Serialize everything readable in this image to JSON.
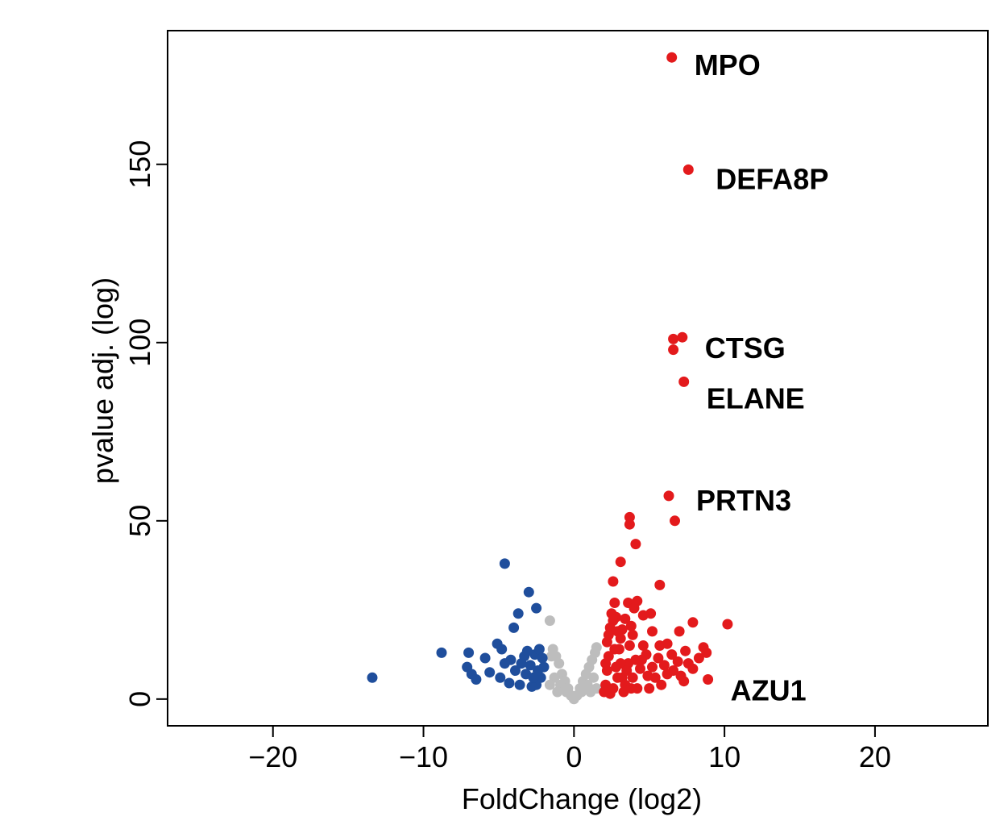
{
  "chart_data": {
    "type": "scatter",
    "title": "",
    "xlabel": "FoldChange (log2)",
    "ylabel": "pvalue adj. (log)",
    "xlim": [
      -27,
      27.5
    ],
    "ylim": [
      -7.5,
      187.5
    ],
    "xticks": [
      -20,
      -10,
      0,
      10,
      20
    ],
    "xtick_labels": [
      "−20",
      "−10",
      "0",
      "10",
      "20"
    ],
    "yticks": [
      0,
      50,
      100,
      150
    ],
    "ytick_labels": [
      "0",
      "50",
      "100",
      "150"
    ],
    "grid": false,
    "legend": "none",
    "colors": {
      "up": "#e31a1c",
      "down": "#1f4e9c",
      "ns": "#bdbdbd"
    },
    "series": [
      {
        "group": "up",
        "points": [
          [
            6.5,
            180
          ],
          [
            7.6,
            148.5
          ],
          [
            6.6,
            101
          ],
          [
            7.2,
            101.5
          ],
          [
            6.6,
            98
          ],
          [
            7.3,
            89
          ],
          [
            6.3,
            57
          ],
          [
            6.7,
            50
          ],
          [
            3.7,
            51
          ],
          [
            3.7,
            49
          ],
          [
            4.1,
            43.5
          ],
          [
            3.1,
            38.5
          ],
          [
            2.6,
            33
          ],
          [
            5.7,
            32
          ],
          [
            3.6,
            27
          ],
          [
            4.2,
            27.5
          ],
          [
            4.0,
            25.5
          ],
          [
            5.1,
            24
          ],
          [
            4.6,
            23.5
          ],
          [
            3.4,
            22.5
          ],
          [
            7.9,
            21.5
          ],
          [
            10.2,
            21
          ],
          [
            7.0,
            19
          ],
          [
            5.2,
            19
          ],
          [
            3.2,
            19.5
          ],
          [
            3.8,
            20.5
          ],
          [
            5.7,
            15
          ],
          [
            6.2,
            15.5
          ],
          [
            8.6,
            14.5
          ],
          [
            7.4,
            13.5
          ],
          [
            8.8,
            13
          ],
          [
            6.5,
            12.5
          ],
          [
            5.6,
            11.5
          ],
          [
            4.8,
            12.5
          ],
          [
            4.1,
            11
          ],
          [
            6.9,
            10.5
          ],
          [
            8.3,
            11.5
          ],
          [
            7.6,
            10
          ],
          [
            6.0,
            9.5
          ],
          [
            7.9,
            8.5
          ],
          [
            5.2,
            9
          ],
          [
            4.4,
            8.5
          ],
          [
            3.6,
            10
          ],
          [
            8.9,
            5.5
          ],
          [
            7.1,
            6.5
          ],
          [
            6.2,
            7
          ],
          [
            4.9,
            6.5
          ],
          [
            3.9,
            6
          ],
          [
            2.1,
            4
          ],
          [
            2.2,
            8
          ],
          [
            2.3,
            12
          ],
          [
            2.2,
            16
          ],
          [
            2.4,
            20
          ],
          [
            2.5,
            24
          ],
          [
            2.7,
            27
          ],
          [
            2.8,
            23
          ],
          [
            2.9,
            19
          ],
          [
            3.0,
            14
          ],
          [
            3.1,
            10
          ],
          [
            3.2,
            6
          ],
          [
            2.6,
            3
          ],
          [
            3.4,
            4
          ],
          [
            3.7,
            15
          ],
          [
            3.9,
            18
          ],
          [
            2.1,
            10
          ],
          [
            2.0,
            2
          ],
          [
            2.4,
            1.5
          ],
          [
            3.3,
            2
          ],
          [
            4.2,
            3
          ],
          [
            5.0,
            3
          ],
          [
            5.8,
            4
          ],
          [
            2.7,
            14
          ],
          [
            2.9,
            6
          ],
          [
            3.5,
            8
          ],
          [
            4.6,
            15
          ],
          [
            5.4,
            6
          ],
          [
            6.6,
            8
          ],
          [
            7.3,
            5
          ],
          [
            2.3,
            18
          ],
          [
            2.6,
            22
          ],
          [
            3.1,
            17
          ],
          [
            4.5,
            11
          ],
          [
            2.8,
            9
          ],
          [
            3.8,
            3
          ]
        ]
      },
      {
        "group": "down",
        "points": [
          [
            -13.4,
            6
          ],
          [
            -8.8,
            13
          ],
          [
            -7.0,
            13
          ],
          [
            -7.1,
            9
          ],
          [
            -6.8,
            7
          ],
          [
            -6.5,
            5.5
          ],
          [
            -5.9,
            11.5
          ],
          [
            -5.6,
            7.5
          ],
          [
            -5.1,
            15.5
          ],
          [
            -4.8,
            14
          ],
          [
            -4.6,
            38
          ],
          [
            -3.0,
            30
          ],
          [
            -2.5,
            25.5
          ],
          [
            -3.7,
            24
          ],
          [
            -4.0,
            20
          ],
          [
            -4.2,
            11
          ],
          [
            -4.6,
            10
          ],
          [
            -4.9,
            6
          ],
          [
            -4.3,
            4.5
          ],
          [
            -3.6,
            4
          ],
          [
            -3.2,
            7
          ],
          [
            -2.9,
            9.5
          ],
          [
            -2.6,
            12.5
          ],
          [
            -2.3,
            14
          ],
          [
            -2.0,
            9
          ],
          [
            -2.2,
            6
          ],
          [
            -2.5,
            4
          ],
          [
            -3.3,
            12
          ],
          [
            -3.9,
            8
          ],
          [
            -2.8,
            3.5
          ],
          [
            -3.5,
            10
          ],
          [
            -2.1,
            11.5
          ],
          [
            -2.4,
            8
          ],
          [
            -2.7,
            6
          ],
          [
            -3.1,
            13.5
          ]
        ]
      },
      {
        "group": "ns",
        "points": [
          [
            -1.6,
            22
          ],
          [
            -1.0,
            10
          ],
          [
            -0.8,
            7
          ],
          [
            -0.6,
            5
          ],
          [
            -0.4,
            3
          ],
          [
            -0.2,
            1
          ],
          [
            0.0,
            0
          ],
          [
            0.2,
            1
          ],
          [
            0.4,
            3
          ],
          [
            0.6,
            5
          ],
          [
            0.8,
            7
          ],
          [
            1.0,
            9
          ],
          [
            1.2,
            11
          ],
          [
            1.4,
            13
          ],
          [
            1.5,
            14.5
          ],
          [
            -1.2,
            12
          ],
          [
            -1.4,
            14
          ],
          [
            -1.5,
            12
          ],
          [
            -0.9,
            4
          ],
          [
            -0.5,
            2
          ],
          [
            0.5,
            2
          ],
          [
            0.9,
            4
          ],
          [
            1.3,
            6
          ],
          [
            1.5,
            3
          ],
          [
            -1.3,
            6
          ],
          [
            -1.6,
            4
          ],
          [
            1.1,
            2
          ],
          [
            -1.1,
            2
          ]
        ]
      }
    ],
    "annotations": [
      {
        "label": "MPO",
        "x": 6.5,
        "y": 180
      },
      {
        "label": "DEFA8P",
        "x": 7.6,
        "y": 148.5
      },
      {
        "label": "CTSG",
        "x": 7.2,
        "y": 101.5
      },
      {
        "label": "ELANE",
        "x": 7.3,
        "y": 89
      },
      {
        "label": "PRTN3",
        "x": 6.3,
        "y": 57
      },
      {
        "label": "AZU1",
        "x": 8.9,
        "y": 5.5
      }
    ]
  }
}
